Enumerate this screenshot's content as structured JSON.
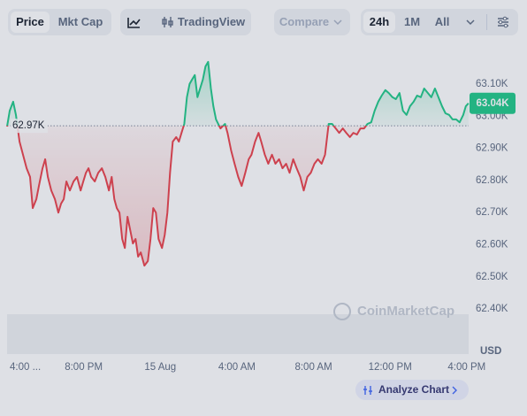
{
  "toolbar": {
    "price": "Price",
    "mkt_cap": "Mkt Cap",
    "tradingview": "TradingView",
    "compare": "Compare",
    "range_24h": "24h",
    "range_1m": "1M",
    "range_all": "All"
  },
  "chart_data": {
    "type": "line",
    "watermark": "CoinMarketCap",
    "unit": "USD",
    "analyze": "Analyze Chart",
    "baseline": {
      "value": 62970,
      "label": "62.97K"
    },
    "current": {
      "value": 63040,
      "label": "63.04K"
    },
    "color_above": "#16c784",
    "color_below": "#ea3943",
    "xlim": [
      0,
      24.1
    ],
    "xticks": [
      {
        "value": 0,
        "label": "4:00 ..."
      },
      {
        "value": 4,
        "label": "8:00 PM"
      },
      {
        "value": 8,
        "label": "15 Aug"
      },
      {
        "value": 12,
        "label": "4:00 AM"
      },
      {
        "value": 16,
        "label": "8:00 AM"
      },
      {
        "value": 20,
        "label": "12:00 PM"
      },
      {
        "value": 24,
        "label": "4:00 PM"
      }
    ],
    "ylim": [
      62260,
      63210
    ],
    "yticks": [
      {
        "value": 62400,
        "label": "62.40K"
      },
      {
        "value": 62500,
        "label": "62.50K"
      },
      {
        "value": 62600,
        "label": "62.60K"
      },
      {
        "value": 62700,
        "label": "62.70K"
      },
      {
        "value": 62800,
        "label": "62.80K"
      },
      {
        "value": 62900,
        "label": "62.90K"
      },
      {
        "value": 63000,
        "label": "63.00K"
      },
      {
        "value": 63100,
        "label": "63.10K"
      }
    ],
    "x": [
      0,
      0.14,
      0.32,
      0.46,
      0.65,
      0.83,
      1.02,
      1.2,
      1.34,
      1.53,
      1.66,
      1.85,
      1.99,
      2.13,
      2.31,
      2.5,
      2.68,
      2.82,
      2.96,
      3.1,
      3.28,
      3.47,
      3.65,
      3.84,
      3.98,
      4.12,
      4.25,
      4.39,
      4.58,
      4.76,
      4.95,
      5.13,
      5.32,
      5.46,
      5.6,
      5.73,
      5.87,
      6.01,
      6.15,
      6.29,
      6.43,
      6.57,
      6.71,
      6.84,
      6.98,
      7.17,
      7.35,
      7.49,
      7.63,
      7.77,
      7.91,
      8.09,
      8.23,
      8.37,
      8.51,
      8.65,
      8.83,
      8.97,
      9.11,
      9.25,
      9.39,
      9.53,
      9.66,
      9.8,
      9.94,
      10.08,
      10.22,
      10.36,
      10.5,
      10.64,
      10.77,
      10.91,
      11.14,
      11.38,
      11.51,
      11.7,
      11.88,
      12.07,
      12.25,
      12.44,
      12.62,
      12.76,
      12.95,
      13.13,
      13.27,
      13.46,
      13.64,
      13.83,
      14.01,
      14.2,
      14.38,
      14.57,
      14.75,
      14.94,
      15.12,
      15.31,
      15.49,
      15.68,
      15.86,
      16.05,
      16.23,
      16.42,
      16.6,
      16.79,
      16.97,
      17.16,
      17.34,
      17.53,
      17.71,
      17.9,
      18.08,
      18.27,
      18.45,
      18.64,
      18.82,
      19.01,
      19.19,
      19.38,
      19.56,
      19.75,
      19.93,
      20.12,
      20.3,
      20.49,
      20.67,
      20.86,
      21.04,
      21.23,
      21.41,
      21.6,
      21.78,
      21.97,
      22.15,
      22.34,
      22.52,
      22.71,
      22.89,
      23.08,
      23.26,
      23.45,
      23.63,
      23.82,
      23.95,
      24.09
    ],
    "values": [
      62968,
      63017,
      63045,
      63004,
      62921,
      62880,
      62838,
      62811,
      62714,
      62742,
      62783,
      62838,
      62866,
      62811,
      62769,
      62742,
      62700,
      62728,
      62742,
      62797,
      62769,
      62797,
      62811,
      62769,
      62797,
      62824,
      62838,
      62811,
      62797,
      62824,
      62838,
      62811,
      62769,
      62811,
      62742,
      62714,
      62700,
      62618,
      62590,
      62687,
      62645,
      62604,
      62618,
      62563,
      62576,
      62535,
      62549,
      62618,
      62714,
      62700,
      62618,
      62590,
      62631,
      62700,
      62824,
      62921,
      62935,
      62921,
      62948,
      62976,
      63059,
      63100,
      63114,
      63128,
      63059,
      63086,
      63114,
      63155,
      63169,
      63086,
      63031,
      62990,
      62962,
      62976,
      62948,
      62893,
      62852,
      62811,
      62783,
      62824,
      62866,
      62880,
      62921,
      62948,
      62921,
      62880,
      62852,
      62880,
      62852,
      62866,
      62838,
      62852,
      62824,
      62866,
      62838,
      62811,
      62769,
      62811,
      62824,
      62852,
      62866,
      62852,
      62880,
      62976,
      62976,
      62962,
      62948,
      62962,
      62948,
      62935,
      62948,
      62943,
      62962,
      62962,
      62976,
      62981,
      63017,
      63045,
      63064,
      63081,
      63072,
      63059,
      63053,
      63072,
      63017,
      63004,
      63031,
      63045,
      63064,
      63059,
      63086,
      63072,
      63059,
      63086,
      63059,
      63031,
      63009,
      63004,
      62990,
      62990,
      62981,
      63004,
      63031,
      63040
    ]
  }
}
